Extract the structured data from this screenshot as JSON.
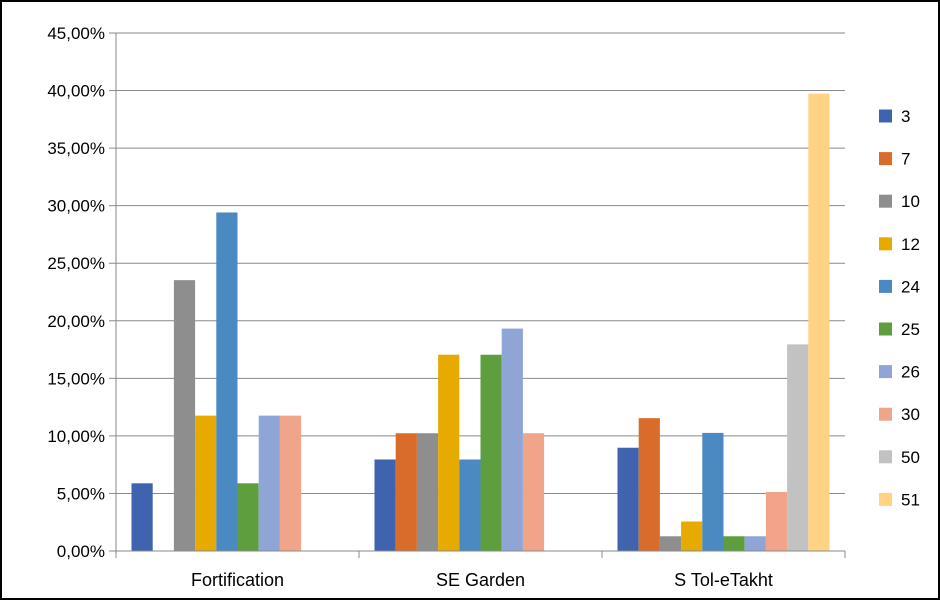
{
  "chart_data": {
    "type": "bar",
    "title": "",
    "xlabel": "",
    "ylabel": "",
    "ylim": [
      0,
      45
    ],
    "y_ticks": [
      "0,00%",
      "5,00%",
      "10,00%",
      "15,00%",
      "20,00%",
      "25,00%",
      "30,00%",
      "35,00%",
      "40,00%",
      "45,00%"
    ],
    "y_tick_values": [
      0,
      5,
      10,
      15,
      20,
      25,
      30,
      35,
      40,
      45
    ],
    "grid": true,
    "legend_position": "right",
    "categories": [
      "Fortification",
      "SE Garden",
      "S Tol-eTakht"
    ],
    "series": [
      {
        "name": "3",
        "color": "#3F63AE",
        "values": [
          5.88,
          7.95,
          8.97
        ]
      },
      {
        "name": "7",
        "color": "#D96C2B",
        "values": [
          0,
          10.23,
          11.54
        ]
      },
      {
        "name": "10",
        "color": "#8E8E8E",
        "values": [
          23.53,
          10.23,
          1.28
        ]
      },
      {
        "name": "12",
        "color": "#E6AA00",
        "values": [
          11.76,
          17.05,
          2.56
        ]
      },
      {
        "name": "24",
        "color": "#4A89C2",
        "values": [
          29.41,
          7.95,
          10.26
        ]
      },
      {
        "name": "25",
        "color": "#5E9E3F",
        "values": [
          5.88,
          17.05,
          1.28
        ]
      },
      {
        "name": "26",
        "color": "#8FA5D6",
        "values": [
          11.76,
          19.32,
          1.28
        ]
      },
      {
        "name": "30",
        "color": "#F0A58A",
        "values": [
          11.76,
          10.23,
          5.13
        ]
      },
      {
        "name": "50",
        "color": "#C2C2C2",
        "values": [
          0,
          0,
          17.95
        ]
      },
      {
        "name": "51",
        "color": "#FFD383",
        "values": [
          0,
          0,
          39.74
        ]
      }
    ]
  }
}
